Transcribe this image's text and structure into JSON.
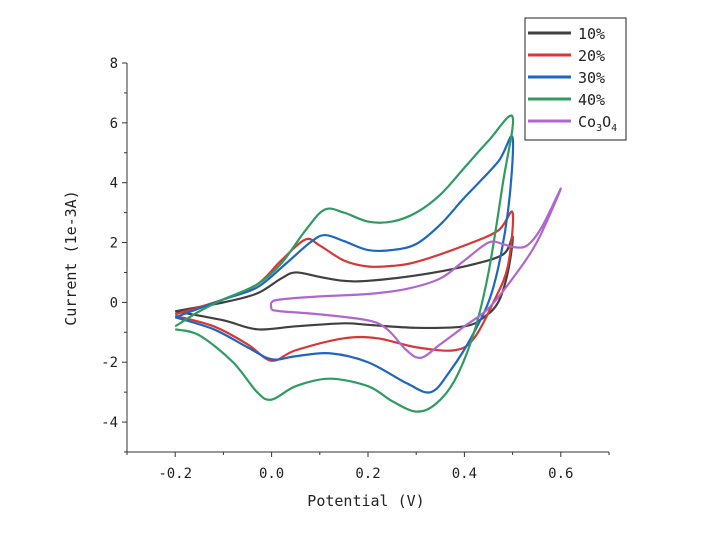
{
  "chart_data": {
    "type": "line",
    "title": "",
    "xlabel": "Potential (V)",
    "ylabel": "Current (1e-3A)",
    "xlim": [
      -0.3,
      0.7
    ],
    "ylim": [
      -5,
      8
    ],
    "xticks": [
      "-0.2",
      "0.0",
      "0.2",
      "0.4",
      "0.6"
    ],
    "xtick_values": [
      -0.2,
      0.0,
      0.2,
      0.4,
      0.6
    ],
    "yticks": [
      "-4",
      "-2",
      "0",
      "2",
      "4",
      "6",
      "8"
    ],
    "ytick_values": [
      -4,
      -2,
      0,
      2,
      4,
      6,
      8
    ],
    "grid": false,
    "legend_placement": "top-right",
    "series": [
      {
        "name": "10%",
        "color": "#404040",
        "points": [
          [
            -0.2,
            -0.3
          ],
          [
            -0.1,
            0.0
          ],
          [
            -0.03,
            0.3
          ],
          [
            0.02,
            0.8
          ],
          [
            0.05,
            1.0
          ],
          [
            0.1,
            0.85
          ],
          [
            0.15,
            0.72
          ],
          [
            0.2,
            0.72
          ],
          [
            0.3,
            0.9
          ],
          [
            0.4,
            1.2
          ],
          [
            0.48,
            1.6
          ],
          [
            0.5,
            2.2
          ],
          [
            0.49,
            1.0
          ],
          [
            0.47,
            0.0
          ],
          [
            0.44,
            -0.5
          ],
          [
            0.4,
            -0.8
          ],
          [
            0.3,
            -0.85
          ],
          [
            0.2,
            -0.75
          ],
          [
            0.15,
            -0.7
          ],
          [
            0.05,
            -0.8
          ],
          [
            -0.03,
            -0.9
          ],
          [
            -0.1,
            -0.6
          ],
          [
            -0.2,
            -0.3
          ]
        ]
      },
      {
        "name": "20%",
        "color": "#d93636",
        "points": [
          [
            -0.2,
            -0.4
          ],
          [
            -0.1,
            0.1
          ],
          [
            -0.03,
            0.6
          ],
          [
            0.02,
            1.4
          ],
          [
            0.07,
            2.1
          ],
          [
            0.1,
            1.9
          ],
          [
            0.15,
            1.4
          ],
          [
            0.2,
            1.2
          ],
          [
            0.25,
            1.22
          ],
          [
            0.3,
            1.35
          ],
          [
            0.4,
            1.9
          ],
          [
            0.47,
            2.4
          ],
          [
            0.5,
            3.0
          ],
          [
            0.49,
            1.2
          ],
          [
            0.46,
            0.0
          ],
          [
            0.42,
            -1.2
          ],
          [
            0.38,
            -1.6
          ],
          [
            0.3,
            -1.5
          ],
          [
            0.22,
            -1.2
          ],
          [
            0.15,
            -1.2
          ],
          [
            0.05,
            -1.6
          ],
          [
            0.0,
            -1.95
          ],
          [
            -0.05,
            -1.4
          ],
          [
            -0.12,
            -0.8
          ],
          [
            -0.2,
            -0.45
          ]
        ]
      },
      {
        "name": "30%",
        "color": "#1f66c2",
        "points": [
          [
            -0.2,
            -0.5
          ],
          [
            -0.1,
            0.1
          ],
          [
            -0.03,
            0.5
          ],
          [
            0.03,
            1.3
          ],
          [
            0.08,
            2.0
          ],
          [
            0.11,
            2.25
          ],
          [
            0.15,
            2.05
          ],
          [
            0.2,
            1.75
          ],
          [
            0.25,
            1.75
          ],
          [
            0.3,
            1.95
          ],
          [
            0.35,
            2.6
          ],
          [
            0.4,
            3.5
          ],
          [
            0.47,
            4.7
          ],
          [
            0.5,
            5.5
          ],
          [
            0.49,
            3.0
          ],
          [
            0.46,
            0.5
          ],
          [
            0.42,
            -1.0
          ],
          [
            0.37,
            -2.3
          ],
          [
            0.33,
            -3.0
          ],
          [
            0.28,
            -2.7
          ],
          [
            0.2,
            -2.0
          ],
          [
            0.12,
            -1.7
          ],
          [
            0.05,
            -1.8
          ],
          [
            0.0,
            -1.9
          ],
          [
            -0.05,
            -1.5
          ],
          [
            -0.12,
            -0.9
          ],
          [
            -0.2,
            -0.5
          ]
        ]
      },
      {
        "name": "40%",
        "color": "#2e9c61",
        "points": [
          [
            -0.2,
            -0.8
          ],
          [
            -0.15,
            -0.3
          ],
          [
            -0.1,
            0.1
          ],
          [
            -0.03,
            0.6
          ],
          [
            0.02,
            1.3
          ],
          [
            0.07,
            2.4
          ],
          [
            0.11,
            3.1
          ],
          [
            0.15,
            3.0
          ],
          [
            0.2,
            2.7
          ],
          [
            0.25,
            2.7
          ],
          [
            0.3,
            3.0
          ],
          [
            0.35,
            3.6
          ],
          [
            0.4,
            4.5
          ],
          [
            0.45,
            5.4
          ],
          [
            0.5,
            6.2
          ],
          [
            0.48,
            4.0
          ],
          [
            0.45,
            1.0
          ],
          [
            0.42,
            -1.0
          ],
          [
            0.38,
            -2.6
          ],
          [
            0.34,
            -3.4
          ],
          [
            0.3,
            -3.65
          ],
          [
            0.25,
            -3.3
          ],
          [
            0.2,
            -2.8
          ],
          [
            0.12,
            -2.55
          ],
          [
            0.05,
            -2.8
          ],
          [
            0.0,
            -3.25
          ],
          [
            -0.03,
            -3.0
          ],
          [
            -0.08,
            -2.0
          ],
          [
            -0.15,
            -1.1
          ],
          [
            -0.2,
            -0.9
          ]
        ]
      },
      {
        "name": "Co3O4",
        "color": "#b066d0",
        "points": [
          [
            0.0,
            -0.25
          ],
          [
            0.0,
            0.0
          ],
          [
            0.02,
            0.1
          ],
          [
            0.1,
            0.2
          ],
          [
            0.2,
            0.28
          ],
          [
            0.28,
            0.45
          ],
          [
            0.35,
            0.8
          ],
          [
            0.4,
            1.4
          ],
          [
            0.45,
            2.0
          ],
          [
            0.48,
            1.95
          ],
          [
            0.5,
            1.85
          ],
          [
            0.53,
            1.9
          ],
          [
            0.56,
            2.5
          ],
          [
            0.6,
            3.8
          ],
          [
            0.55,
            2.0
          ],
          [
            0.5,
            0.8
          ],
          [
            0.45,
            -0.2
          ],
          [
            0.4,
            -0.8
          ],
          [
            0.35,
            -1.4
          ],
          [
            0.31,
            -1.85
          ],
          [
            0.28,
            -1.6
          ],
          [
            0.24,
            -0.9
          ],
          [
            0.2,
            -0.6
          ],
          [
            0.1,
            -0.4
          ],
          [
            0.02,
            -0.3
          ],
          [
            0.0,
            -0.25
          ]
        ]
      }
    ]
  }
}
